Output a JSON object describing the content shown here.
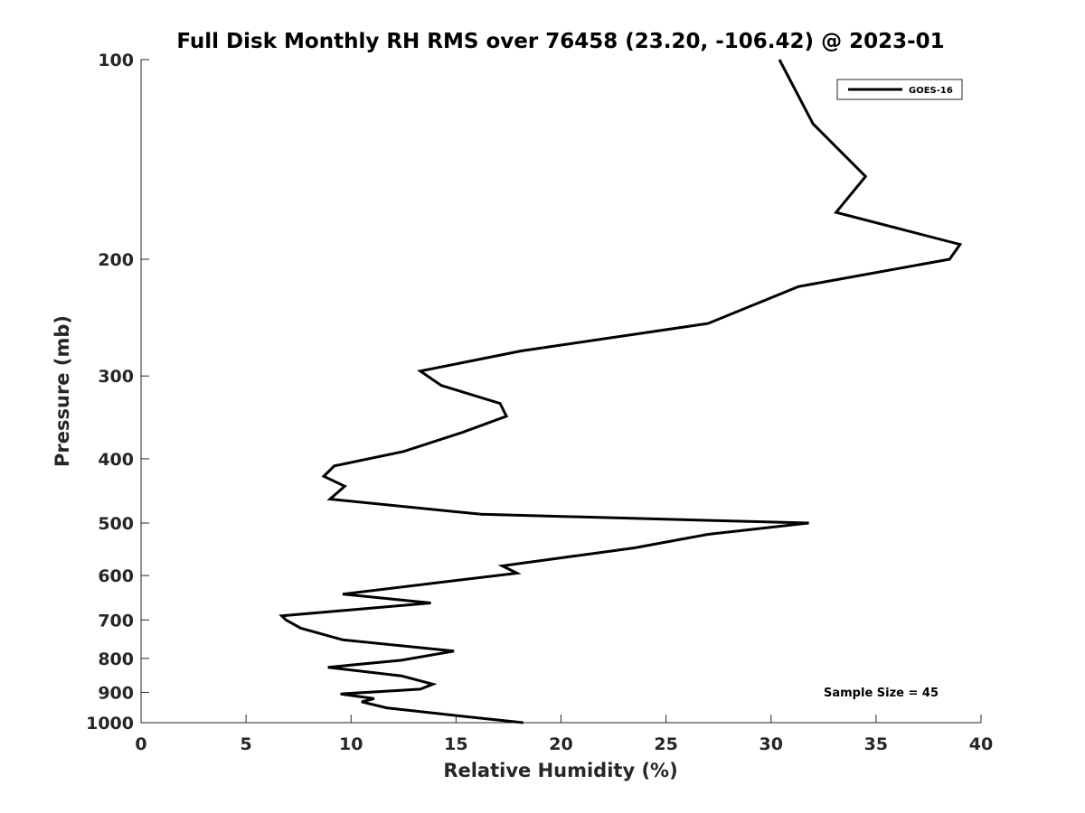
{
  "chart_data": {
    "type": "line",
    "title": "Full Disk Monthly RH RMS over 76458 (23.20, -106.42) @ 2023-01",
    "xlabel": "Relative Humidity (%)",
    "ylabel": "Pressure (mb)",
    "xlim": [
      0,
      40
    ],
    "ylim": [
      1000,
      100
    ],
    "yscale": "log",
    "y_reversed": true,
    "xticks": [
      0,
      5,
      10,
      15,
      20,
      25,
      30,
      35,
      40
    ],
    "xtick_labels": [
      "0",
      "5",
      "10",
      "15",
      "20",
      "25",
      "30",
      "35",
      "40"
    ],
    "yticks": [
      100,
      200,
      300,
      400,
      500,
      600,
      700,
      800,
      900,
      1000
    ],
    "ytick_labels": [
      "100",
      "200",
      "300",
      "400",
      "500",
      "600",
      "700",
      "800",
      "900",
      "1000"
    ],
    "grid": false,
    "legend_position": "top-right",
    "annotation": "Sample Size = 45",
    "series": [
      {
        "name": "GOES-16",
        "color": "#000000",
        "x": [
          30.4,
          32.0,
          34.5,
          33.1,
          39.0,
          38.5,
          31.3,
          27.0,
          18.1,
          13.3,
          14.3,
          17.1,
          17.4,
          15.3,
          12.5,
          9.2,
          8.7,
          9.7,
          9.0,
          16.2,
          31.8,
          27.0,
          23.5,
          17.2,
          17.9,
          9.6,
          13.8,
          6.7,
          6.9,
          7.6,
          9.6,
          14.9,
          12.4,
          8.9,
          12.4,
          13.9,
          13.3,
          9.5,
          11.1,
          10.5,
          11.7,
          15.6,
          18.2
        ],
        "y": [
          100,
          125,
          150,
          170,
          190,
          200,
          220,
          250,
          275,
          295,
          310,
          330,
          345,
          365,
          390,
          410,
          425,
          440,
          460,
          485,
          500,
          520,
          545,
          580,
          595,
          640,
          660,
          690,
          700,
          720,
          750,
          780,
          805,
          825,
          850,
          875,
          890,
          905,
          920,
          930,
          950,
          980,
          1000
        ]
      }
    ]
  }
}
